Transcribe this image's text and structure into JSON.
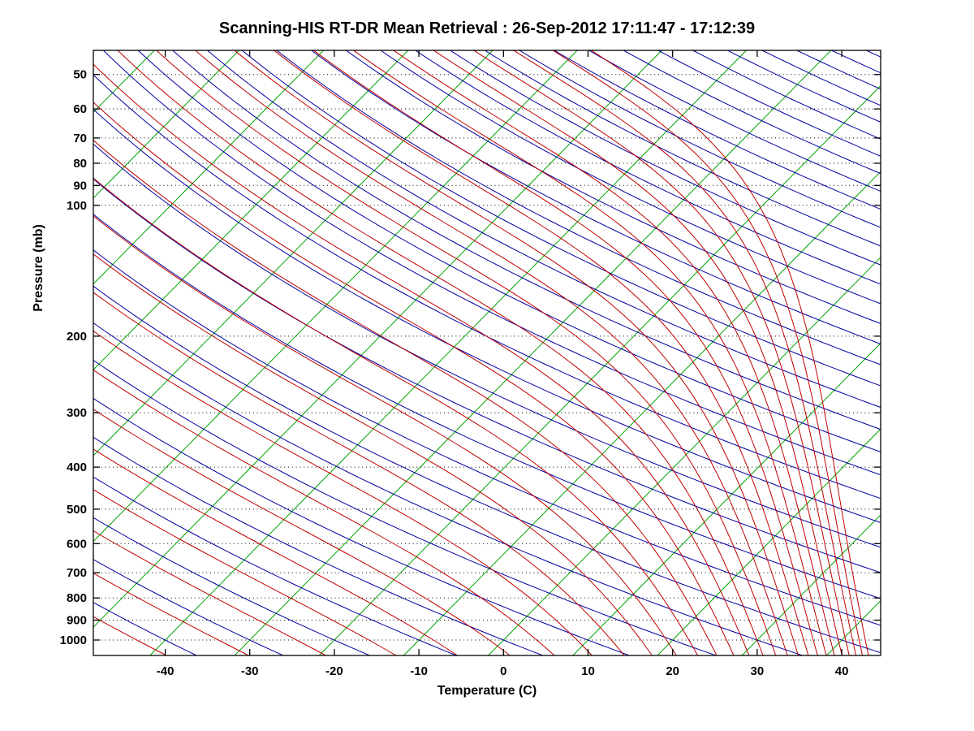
{
  "figure": {
    "background": "#ffffff"
  },
  "chart_data": {
    "type": "line",
    "variant": "skew-T log-P thermodynamic diagram",
    "title": "Scanning-HIS RT-DR Mean Retrieval : 26-Sep-2012 17:11:47 - 17:12:39",
    "xlabel": "Temperature (C)",
    "ylabel": "Pressure (mb)",
    "x_axis": {
      "unit": "C",
      "min": -48.5,
      "max": 44.6,
      "ticks": [
        -40,
        -30,
        -20,
        -10,
        0,
        10,
        20,
        30,
        40
      ]
    },
    "y_axis": {
      "unit": "mb",
      "scale": "log",
      "inverted": true,
      "top_pressure": 44,
      "bottom_pressure": 1085,
      "ticks": [
        50,
        60,
        70,
        80,
        90,
        100,
        200,
        300,
        400,
        500,
        600,
        700,
        800,
        900,
        1000
      ]
    },
    "skew_deg_c_per_ln_p": 22,
    "reference_pressure": 1000,
    "grid": {
      "horizontal_dotted": true,
      "vertical": false,
      "color": "#000000"
    },
    "axis_color": "#000000",
    "line_families": [
      {
        "name": "isotherms",
        "description": "straight skewed lines of constant temperature (green)",
        "color": "#00a400",
        "unit": "deg C",
        "from": -120,
        "to": 40,
        "step": 10
      },
      {
        "name": "dry_adiabats",
        "description": "lines of constant potential temperature (blue)",
        "color": "#0000a0",
        "unit": "deg C potential temperature",
        "from": -40,
        "to": 340,
        "step": 10
      },
      {
        "name": "moist_adiabats",
        "description": "pseudoadiabats of constant equivalent potential temperature (red); hug the dry adiabats at cold temperatures (upper left) and become nearly vertical in the warm lower right",
        "color": "#c00000",
        "unit": "K equivalent potential temperature",
        "from": 230,
        "to": 500,
        "step": 10
      }
    ],
    "legend": null
  }
}
